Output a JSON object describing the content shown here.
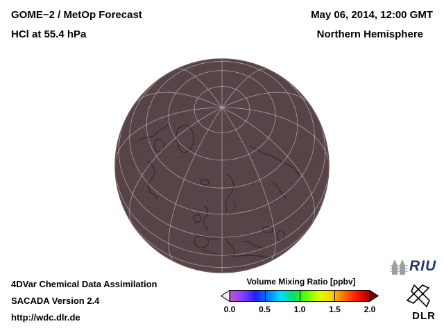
{
  "header": {
    "title_line1": "GOME−2 / MetOp Forecast",
    "title_line2": "HCl at 55.4 hPa",
    "datetime": "May 06, 2014, 12:00 GMT",
    "region": "Northern Hemisphere"
  },
  "footer": {
    "line1": "4DVar Chemical Data Assimilation",
    "line2": "SACADA Version 2.4",
    "line3": "http://wdc.dlr.de"
  },
  "globe": {
    "projection": "orthographic-northern-hemisphere",
    "fill_color": "#4b383b",
    "edge_color": "#6b565a",
    "graticule_color": "#c9bec0",
    "coastline_color": "#271c1e"
  },
  "colorbar": {
    "title": "Volume Mixing Ratio [ppbv]",
    "ticks": [
      "0.0",
      "0.5",
      "1.0",
      "1.5",
      "2.0"
    ],
    "min": 0.0,
    "max": 2.0,
    "gradient": [
      "#c94fe0",
      "#8040ff",
      "#2020ff",
      "#0080ff",
      "#00e0ff",
      "#00e060",
      "#60ff00",
      "#d8ff00",
      "#ffd000",
      "#ff7000",
      "#ff1800",
      "#a80000"
    ],
    "left_arrow_color": "#f6eefc",
    "right_arrow_color": "#6e0000"
  },
  "logos": {
    "riu_label": "RIU",
    "dlr_label": "DLR"
  }
}
